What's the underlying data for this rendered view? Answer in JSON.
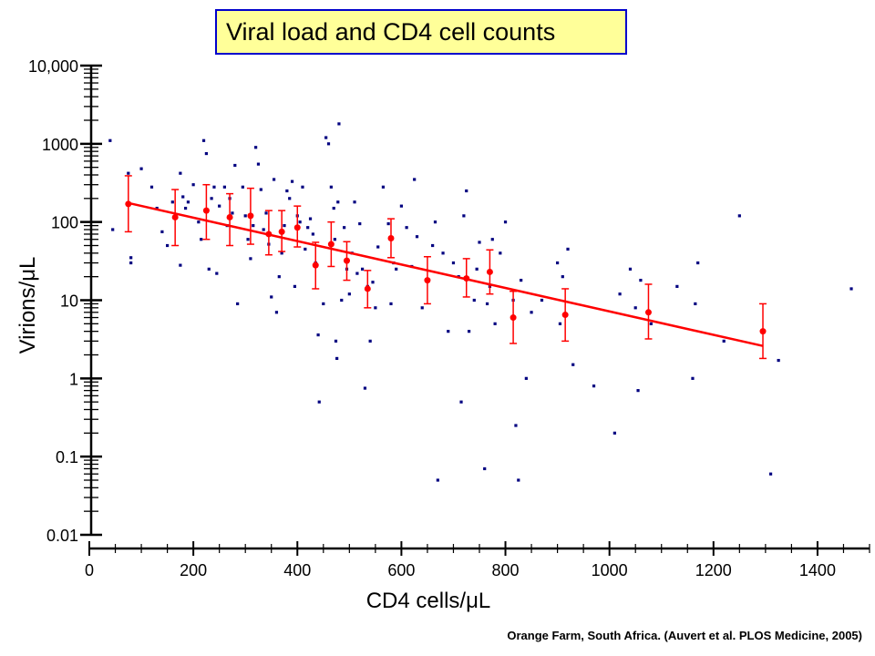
{
  "chart_data": {
    "type": "scatter",
    "title": "Viral load and CD4 cell counts",
    "xlabel": "CD4 cells/μL",
    "ylabel": "Virions/μL",
    "caption": "Orange Farm, South Africa. (Auvert et al. PLOS Medicine, 2005)",
    "xlim": [
      0,
      1500
    ],
    "ylim": [
      0.01,
      10000
    ],
    "y_scale": "log",
    "x_ticks": [
      0,
      200,
      400,
      600,
      800,
      1000,
      1200,
      1400
    ],
    "x_tick_labels": [
      "0",
      "200",
      "400",
      "600",
      "800",
      "1000",
      "1200",
      "1400"
    ],
    "y_ticks": [
      0.01,
      0.1,
      1,
      10,
      100,
      1000,
      10000
    ],
    "y_tick_labels": [
      "0.01",
      "0.1",
      "1",
      "10",
      "100",
      "1000",
      "10,000"
    ],
    "grid": false,
    "series": [
      {
        "kind": "points",
        "color": "#000080",
        "points": [
          [
            40,
            1100
          ],
          [
            45,
            80
          ],
          [
            75,
            420
          ],
          [
            80,
            30
          ],
          [
            80,
            35
          ],
          [
            100,
            480
          ],
          [
            120,
            280
          ],
          [
            130,
            150
          ],
          [
            140,
            75
          ],
          [
            150,
            50
          ],
          [
            160,
            180
          ],
          [
            175,
            420
          ],
          [
            175,
            28
          ],
          [
            180,
            210
          ],
          [
            185,
            150
          ],
          [
            190,
            180
          ],
          [
            200,
            300
          ],
          [
            210,
            100
          ],
          [
            215,
            60
          ],
          [
            220,
            1100
          ],
          [
            225,
            750
          ],
          [
            230,
            25
          ],
          [
            235,
            200
          ],
          [
            240,
            280
          ],
          [
            245,
            22
          ],
          [
            250,
            160
          ],
          [
            260,
            280
          ],
          [
            265,
            90
          ],
          [
            270,
            200
          ],
          [
            275,
            130
          ],
          [
            280,
            530
          ],
          [
            285,
            9
          ],
          [
            295,
            280
          ],
          [
            300,
            120
          ],
          [
            305,
            60
          ],
          [
            310,
            34
          ],
          [
            315,
            90
          ],
          [
            320,
            900
          ],
          [
            325,
            550
          ],
          [
            330,
            260
          ],
          [
            335,
            80
          ],
          [
            340,
            130
          ],
          [
            345,
            52
          ],
          [
            350,
            11
          ],
          [
            355,
            350
          ],
          [
            360,
            7
          ],
          [
            365,
            20
          ],
          [
            370,
            40
          ],
          [
            375,
            90
          ],
          [
            380,
            250
          ],
          [
            385,
            200
          ],
          [
            390,
            330
          ],
          [
            395,
            15
          ],
          [
            400,
            120
          ],
          [
            405,
            100
          ],
          [
            410,
            280
          ],
          [
            415,
            45
          ],
          [
            420,
            85
          ],
          [
            425,
            110
          ],
          [
            430,
            70
          ],
          [
            435,
            30
          ],
          [
            440,
            3.6
          ],
          [
            442,
            0.5
          ],
          [
            450,
            9
          ],
          [
            455,
            1200
          ],
          [
            460,
            1000
          ],
          [
            465,
            280
          ],
          [
            470,
            150
          ],
          [
            472,
            60
          ],
          [
            474,
            3
          ],
          [
            476,
            1.8
          ],
          [
            478,
            180
          ],
          [
            480,
            1800
          ],
          [
            485,
            10
          ],
          [
            490,
            85
          ],
          [
            495,
            25
          ],
          [
            500,
            12
          ],
          [
            505,
            40
          ],
          [
            510,
            180
          ],
          [
            515,
            22
          ],
          [
            520,
            95
          ],
          [
            525,
            25
          ],
          [
            530,
            0.75
          ],
          [
            535,
            15
          ],
          [
            540,
            3
          ],
          [
            545,
            17
          ],
          [
            550,
            8
          ],
          [
            555,
            48
          ],
          [
            565,
            280
          ],
          [
            575,
            95
          ],
          [
            580,
            9
          ],
          [
            585,
            30
          ],
          [
            590,
            25
          ],
          [
            600,
            160
          ],
          [
            610,
            85
          ],
          [
            620,
            27
          ],
          [
            625,
            350
          ],
          [
            630,
            65
          ],
          [
            640,
            8
          ],
          [
            660,
            50
          ],
          [
            665,
            100
          ],
          [
            670,
            0.05
          ],
          [
            680,
            40
          ],
          [
            690,
            4
          ],
          [
            700,
            30
          ],
          [
            710,
            20
          ],
          [
            715,
            0.5
          ],
          [
            720,
            120
          ],
          [
            725,
            250
          ],
          [
            730,
            4
          ],
          [
            740,
            10
          ],
          [
            745,
            25
          ],
          [
            750,
            55
          ],
          [
            760,
            0.07
          ],
          [
            765,
            9
          ],
          [
            770,
            15
          ],
          [
            775,
            60
          ],
          [
            780,
            5
          ],
          [
            790,
            40
          ],
          [
            800,
            100
          ],
          [
            815,
            10
          ],
          [
            820,
            0.25
          ],
          [
            825,
            0.05
          ],
          [
            830,
            18
          ],
          [
            840,
            1
          ],
          [
            850,
            7
          ],
          [
            870,
            10
          ],
          [
            900,
            30
          ],
          [
            905,
            5
          ],
          [
            910,
            20
          ],
          [
            920,
            45
          ],
          [
            930,
            1.5
          ],
          [
            970,
            0.8
          ],
          [
            1010,
            0.2
          ],
          [
            1020,
            12
          ],
          [
            1040,
            25
          ],
          [
            1050,
            8
          ],
          [
            1055,
            0.7
          ],
          [
            1060,
            18
          ],
          [
            1080,
            5
          ],
          [
            1130,
            15
          ],
          [
            1160,
            1
          ],
          [
            1165,
            9
          ],
          [
            1170,
            30
          ],
          [
            1220,
            3
          ],
          [
            1250,
            120
          ],
          [
            1310,
            0.06
          ],
          [
            1325,
            1.7
          ],
          [
            1465,
            14
          ]
        ]
      },
      {
        "kind": "binned_means",
        "color": "#ff0000",
        "points": [
          {
            "x": 75,
            "y": 170,
            "lo": 75,
            "hi": 390
          },
          {
            "x": 165,
            "y": 115,
            "lo": 50,
            "hi": 260
          },
          {
            "x": 225,
            "y": 140,
            "lo": 60,
            "hi": 300
          },
          {
            "x": 270,
            "y": 115,
            "lo": 50,
            "hi": 230
          },
          {
            "x": 310,
            "y": 120,
            "lo": 52,
            "hi": 270
          },
          {
            "x": 345,
            "y": 70,
            "lo": 38,
            "hi": 140
          },
          {
            "x": 370,
            "y": 75,
            "lo": 42,
            "hi": 140
          },
          {
            "x": 400,
            "y": 85,
            "lo": 48,
            "hi": 160
          },
          {
            "x": 435,
            "y": 28,
            "lo": 14,
            "hi": 55
          },
          {
            "x": 465,
            "y": 52,
            "lo": 27,
            "hi": 100
          },
          {
            "x": 495,
            "y": 32,
            "lo": 18,
            "hi": 56
          },
          {
            "x": 535,
            "y": 14,
            "lo": 8,
            "hi": 24
          },
          {
            "x": 580,
            "y": 62,
            "lo": 35,
            "hi": 110
          },
          {
            "x": 650,
            "y": 18,
            "lo": 9,
            "hi": 36
          },
          {
            "x": 725,
            "y": 19,
            "lo": 11,
            "hi": 34
          },
          {
            "x": 770,
            "y": 23,
            "lo": 12,
            "hi": 44
          },
          {
            "x": 815,
            "y": 6,
            "lo": 2.8,
            "hi": 13
          },
          {
            "x": 915,
            "y": 6.5,
            "lo": 3,
            "hi": 14
          },
          {
            "x": 1075,
            "y": 7,
            "lo": 3.2,
            "hi": 16
          },
          {
            "x": 1295,
            "y": 4,
            "lo": 1.8,
            "hi": 9
          }
        ]
      },
      {
        "kind": "regression_line",
        "color": "#ff0000",
        "points": [
          [
            75,
            175
          ],
          [
            1295,
            2.6
          ]
        ]
      }
    ]
  }
}
